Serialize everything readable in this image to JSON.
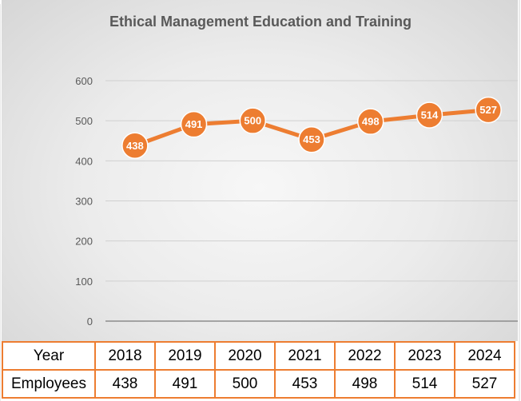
{
  "chart_data": {
    "type": "line",
    "title": "Ethical Management Education and Training",
    "x": [
      "2018",
      "2019",
      "2020",
      "2021",
      "2022",
      "2023",
      "2024"
    ],
    "series": [
      {
        "name": "Employees",
        "values": [
          438,
          491,
          500,
          453,
          498,
          514,
          527
        ]
      }
    ],
    "ylim": [
      0,
      600
    ],
    "yticks": [
      0,
      100,
      200,
      300,
      400,
      500,
      600
    ],
    "grid": true,
    "legend": "none",
    "data_labels": true,
    "line_color": "#ed7d31"
  },
  "table": {
    "row_labels": [
      "Year",
      "Employees"
    ],
    "years": [
      "2018",
      "2019",
      "2020",
      "2021",
      "2022",
      "2023",
      "2024"
    ],
    "employees": [
      "438",
      "491",
      "500",
      "453",
      "498",
      "514",
      "527"
    ]
  }
}
